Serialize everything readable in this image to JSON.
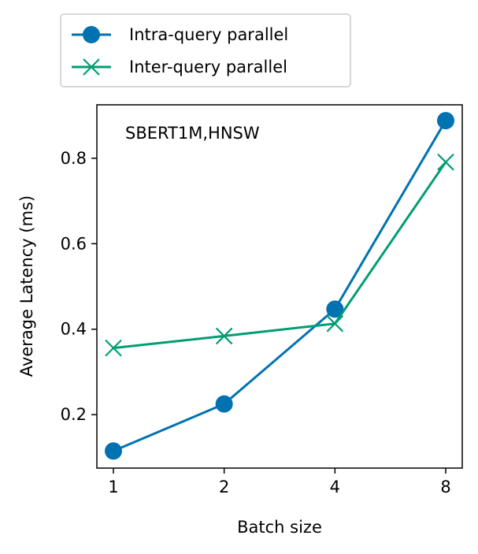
{
  "chart_data": {
    "type": "line",
    "title": "",
    "annotation": "SBERT1M,HNSW",
    "xlabel": "Batch size",
    "ylabel": "Average Latency (ms)",
    "categories": [
      "1",
      "2",
      "4",
      "8"
    ],
    "ylim": [
      0.075,
      0.925
    ],
    "yticks": [
      "0.2",
      "0.4",
      "0.6",
      "0.8"
    ],
    "ytick_values": [
      0.2,
      0.4,
      0.6,
      0.8
    ],
    "grid": false,
    "legend_position": "above plot, left",
    "series": [
      {
        "name": "Intra-query parallel",
        "color": "#0072B2",
        "marker": "circle",
        "values": [
          0.115,
          0.225,
          0.447,
          0.888
        ]
      },
      {
        "name": "Inter-query parallel",
        "color": "#009E73",
        "marker": "x",
        "values": [
          0.356,
          0.384,
          0.413,
          0.791
        ]
      }
    ]
  }
}
